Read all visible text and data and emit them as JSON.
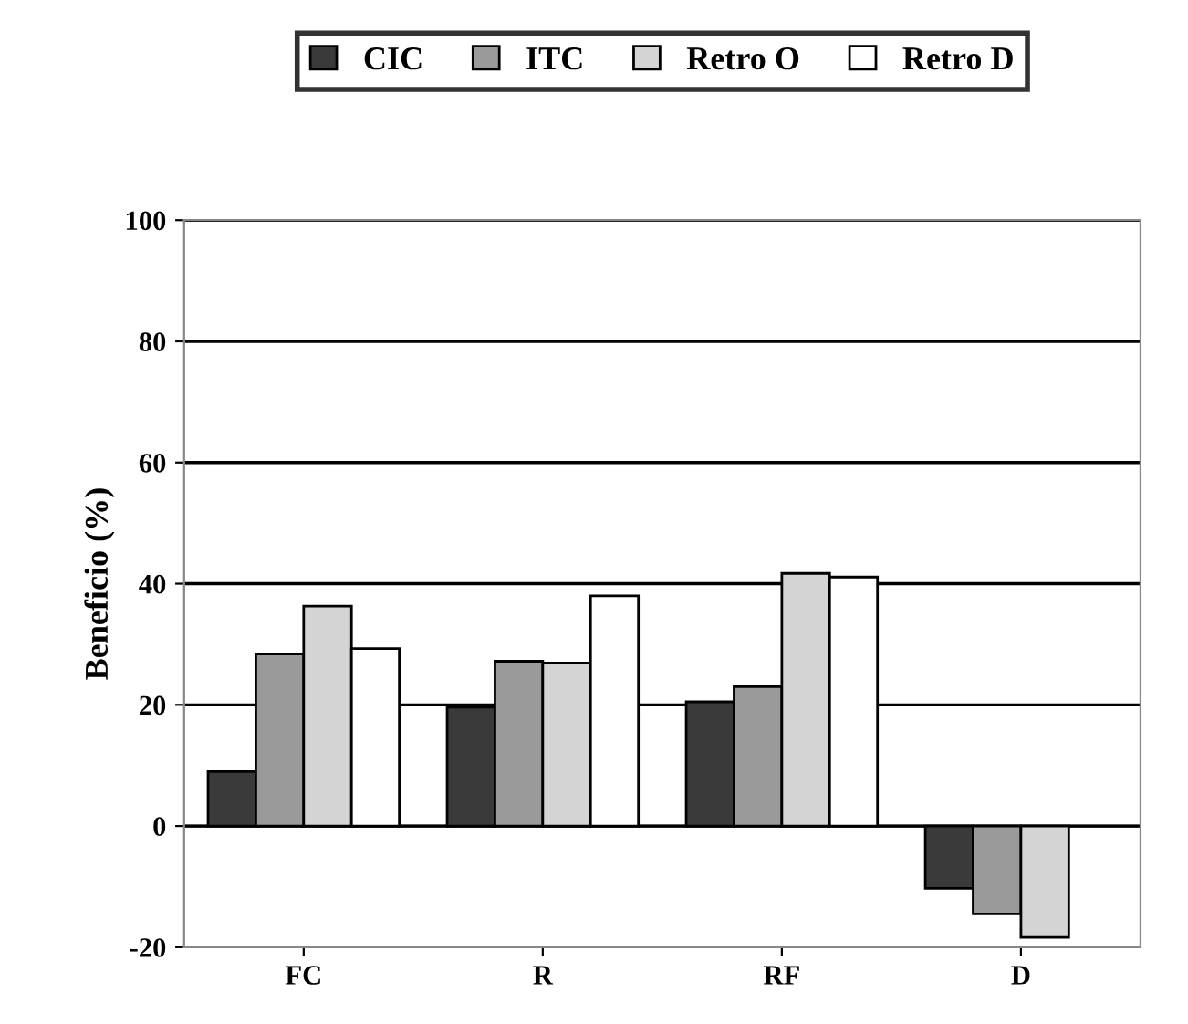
{
  "chart_data": {
    "type": "bar",
    "ylabel": "Beneficio (%)",
    "categories": [
      "FC",
      "R",
      "RF",
      "D"
    ],
    "series": [
      {
        "name": "CIC",
        "color": "#3a3a3a",
        "values": [
          9,
          19.6,
          20.5,
          -10.3
        ]
      },
      {
        "name": "ITC",
        "color": "#9a9a9a",
        "values": [
          28.4,
          27.2,
          23,
          -14.5
        ]
      },
      {
        "name": "Retro O",
        "color": "#d4d4d4",
        "values": [
          36.3,
          26.9,
          41.7,
          -18.4
        ]
      },
      {
        "name": "Retro D",
        "color": "#ffffff",
        "values": [
          29.3,
          38,
          41.1,
          null
        ]
      }
    ],
    "ylim": [
      -20,
      100
    ],
    "yticks": [
      -20,
      0,
      20,
      40,
      60,
      80,
      100
    ],
    "grid": "y",
    "legend": "top"
  }
}
